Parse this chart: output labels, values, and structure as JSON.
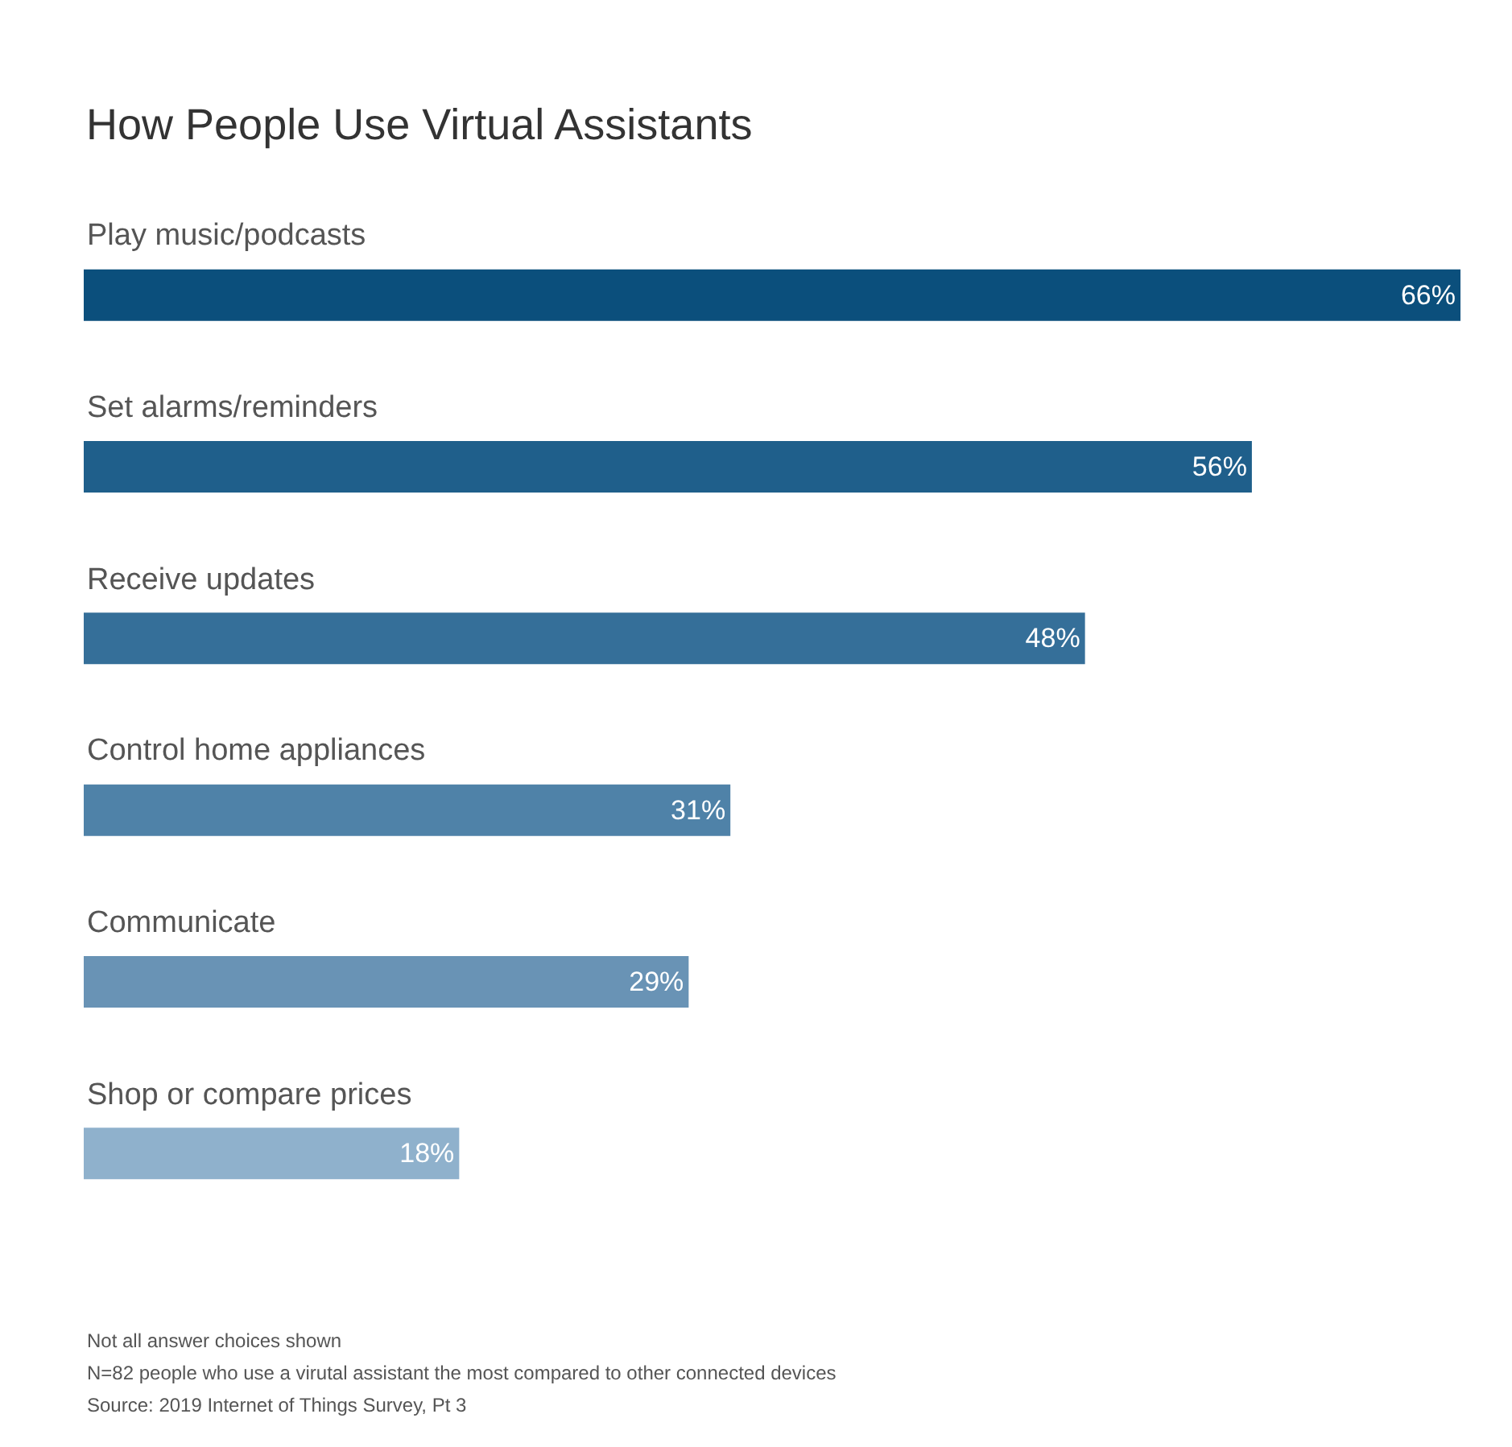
{
  "chart_data": {
    "type": "bar",
    "orientation": "horizontal",
    "title": "How People Use Virtual Assistants",
    "categories": [
      "Play music/podcasts",
      "Set alarms/reminders",
      "Receive updates",
      "Control home appliances",
      "Communicate",
      "Shop or compare prices"
    ],
    "values": [
      66,
      56,
      48,
      31,
      29,
      18
    ],
    "colors": [
      "#0b4f7c",
      "#1f5f8b",
      "#356f99",
      "#4f82a8",
      "#6993b5",
      "#8fb1cc"
    ],
    "value_labels": [
      "66%",
      "56%",
      "48%",
      "31%",
      "29%",
      "18%"
    ],
    "grid": false,
    "annotations": [
      "Not all answer choices shown",
      "N=82 people who use a virutal assistant the most compared to other connected devices",
      "Source: 2019 Internet of Things Survey, Pt 3"
    ]
  }
}
